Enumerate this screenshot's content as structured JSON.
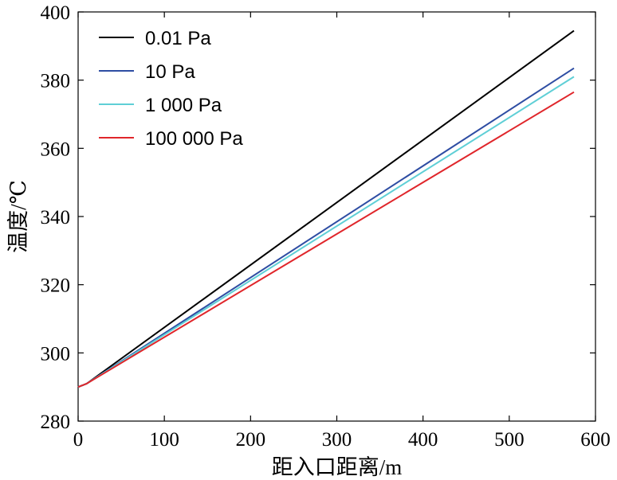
{
  "chart_data": {
    "type": "line",
    "title": "",
    "xlabel": "距入口距离/m",
    "ylabel": "温度/℃",
    "xlim": [
      0,
      600
    ],
    "ylim": [
      280,
      400
    ],
    "xticks": [
      0,
      100,
      200,
      300,
      400,
      500,
      600
    ],
    "yticks": [
      280,
      300,
      320,
      340,
      360,
      380,
      400
    ],
    "grid": false,
    "legend_position": "top-left",
    "series": [
      {
        "name": "0.01 Pa",
        "color": "#000000",
        "x": [
          0,
          10,
          575
        ],
        "y": [
          290,
          291,
          394.5
        ]
      },
      {
        "name": "10 Pa",
        "color": "#2e4da3",
        "x": [
          0,
          10,
          575
        ],
        "y": [
          290,
          291,
          383.5
        ]
      },
      {
        "name": "1 000 Pa",
        "color": "#5fcfd6",
        "x": [
          0,
          10,
          575
        ],
        "y": [
          290,
          291,
          381
        ]
      },
      {
        "name": "100 000 Pa",
        "color": "#e0262b",
        "x": [
          0,
          10,
          575
        ],
        "y": [
          290,
          291,
          376.5
        ]
      }
    ]
  }
}
